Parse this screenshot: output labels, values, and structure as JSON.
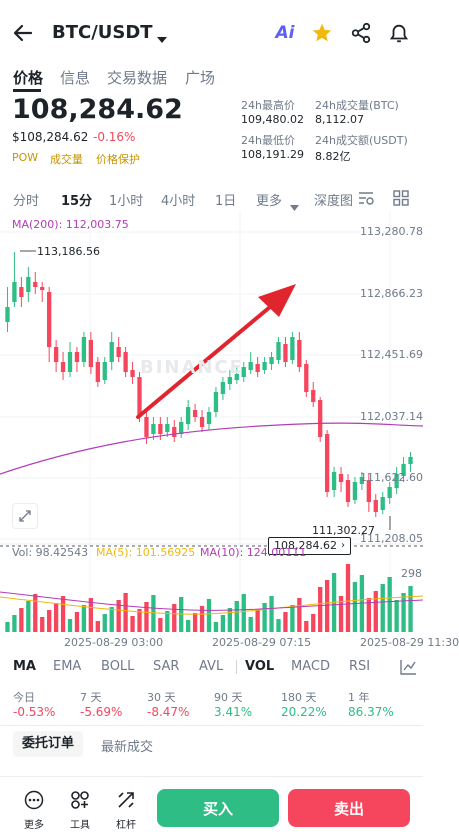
{
  "header": {
    "pair": "BTC/USDT",
    "ai_label": "Ai"
  },
  "tabs": [
    "价格",
    "信息",
    "交易数据",
    "广场"
  ],
  "price": {
    "last": "108,284.62",
    "usd": "$108,284.62",
    "change": "-0.16%",
    "tags": [
      "POW",
      "成交量",
      "价格保护"
    ]
  },
  "stats": {
    "high_label": "24h最高价",
    "high": "109,480.02",
    "vol_btc_label": "24h成交量(BTC)",
    "vol_btc": "8,112.07",
    "low_label": "24h最低价",
    "low": "108,191.29",
    "vol_usdt_label": "24h成交额(USDT)",
    "vol_usdt": "8.82亿"
  },
  "timeframes": [
    "分时",
    "15分",
    "1小时",
    "4小时",
    "1日",
    "更多",
    "深度图"
  ],
  "chart": {
    "ma200_label": "MA(200): 112,003.75",
    "price_ticks": [
      "113,280.78",
      "112,866.23",
      "112,451.69",
      "112,037.14",
      "111,622.60",
      "111,208.05"
    ],
    "high_marker": "113,186.56",
    "low_marker": "111,302.27",
    "current_tag": "108,284.62",
    "watermark": "BINANCE",
    "time_labels": [
      "2025-08-29 03:00",
      "2025-08-29 07:15",
      "2025-08-29 11:30"
    ],
    "volume_legend": {
      "vol": "Vol: 98.42543",
      "ma5": "MA(5): 101.56925",
      "ma10": "MA(10): 124.00111"
    },
    "vol_tick": "298",
    "colors": {
      "up": "#2ebd85",
      "down": "#f6465d",
      "ma200": "#b23cb8",
      "ma5": "#f0b90b",
      "ma10": "#b23cb8"
    }
  },
  "indicators": [
    "MA",
    "EMA",
    "BOLL",
    "SAR",
    "AVL",
    "VOL",
    "MACD",
    "RSI"
  ],
  "performance": [
    {
      "label": "今日",
      "value": "-0.53%"
    },
    {
      "label": "7 天",
      "value": "-5.69%"
    },
    {
      "label": "30 天",
      "value": "-8.47%"
    },
    {
      "label": "90 天",
      "value": "3.41%"
    },
    {
      "label": "180 天",
      "value": "20.22%"
    },
    {
      "label": "1 年",
      "value": "86.37%"
    }
  ],
  "order_tabs": [
    "委托订单",
    "最新成交"
  ],
  "bottom_nav": {
    "more": "更多",
    "tools": "工具",
    "leverage": "杠杆",
    "buy": "买入",
    "sell": "卖出"
  }
}
